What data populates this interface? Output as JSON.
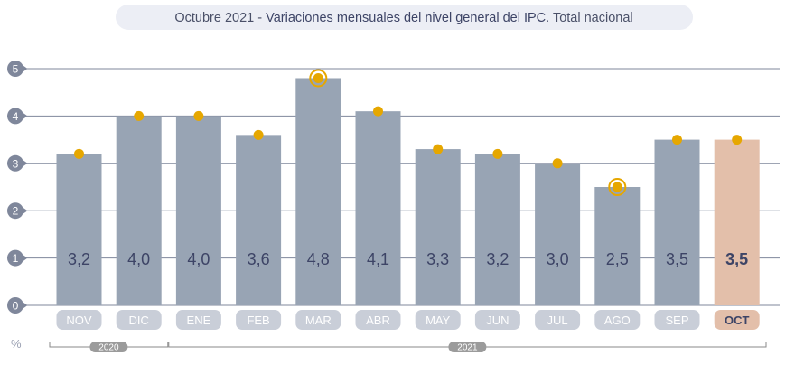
{
  "title": {
    "prefix": "Octubre 2021 - ",
    "main": "Variaciones mensuales del nivel general del IPC",
    "suffix": ". Total nacional"
  },
  "unit": "%",
  "colors": {
    "bar": "#98a4b4",
    "highlight_bar": "#e3bfaa",
    "marker": "#e6a700",
    "axis_dot": "#7f879b",
    "label_dark": "#3d4466",
    "grid": "#7f879b",
    "title_bg": "#eceef5",
    "year_badge": "#9b9b9b"
  },
  "chart_data": {
    "type": "bar",
    "categories": [
      "NOV",
      "DIC",
      "ENE",
      "FEB",
      "MAR",
      "ABR",
      "MAY",
      "JUN",
      "JUL",
      "AGO",
      "SEP",
      "OCT"
    ],
    "values": [
      3.2,
      4.0,
      4.0,
      3.6,
      4.8,
      4.1,
      3.3,
      3.2,
      3.0,
      2.5,
      3.5,
      3.5
    ],
    "value_labels": [
      "3,2",
      "4,0",
      "4,0",
      "3,6",
      "4,8",
      "4,1",
      "3,3",
      "3,2",
      "3,0",
      "2,5",
      "3,5",
      "3,5"
    ],
    "markers": [
      3.2,
      4.0,
      4.0,
      3.6,
      4.8,
      4.1,
      3.3,
      3.2,
      3.0,
      2.5,
      3.5,
      3.5
    ],
    "ringed_markers": [
      "MAR",
      "AGO"
    ],
    "highlight": "OCT",
    "y_ticks": [
      0,
      1,
      2,
      3,
      4,
      5
    ],
    "ylim": [
      0,
      5
    ],
    "grid": true,
    "year_groups": [
      {
        "label": "2020",
        "from": "NOV",
        "to": "DIC"
      },
      {
        "label": "2021",
        "from": "ENE",
        "to": "OCT"
      }
    ]
  }
}
